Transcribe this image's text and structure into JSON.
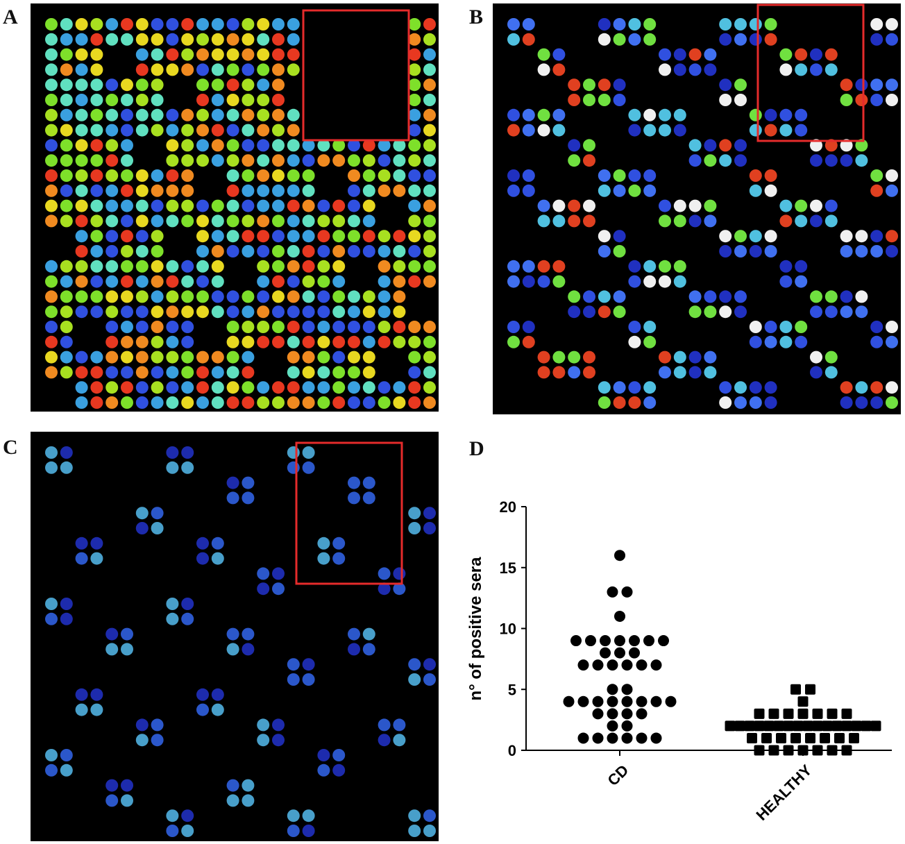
{
  "panels": {
    "a": "A",
    "b": "B",
    "c": "C",
    "d": "D"
  },
  "colors": {
    "highlight_box": "#e52b2b",
    "background": "#000000",
    "marker": "#000000"
  },
  "chart_data": {
    "type": "scatter",
    "ylabel": "n° of positive sera",
    "ylim": [
      0,
      20
    ],
    "yticks": [
      0,
      5,
      10,
      15,
      20
    ],
    "categories": [
      "CD",
      "HEALTHY"
    ],
    "series": [
      {
        "category": "CD",
        "marker": "circle",
        "values": [
          16,
          13,
          13,
          11,
          9,
          9,
          9,
          9,
          9,
          9,
          9,
          8,
          8,
          8,
          7,
          7,
          7,
          7,
          7,
          7,
          5,
          5,
          4,
          4,
          4,
          4,
          4,
          4,
          4,
          4,
          3,
          3,
          3,
          3,
          2,
          2,
          1,
          1,
          1,
          1,
          1,
          1
        ]
      },
      {
        "category": "HEALTHY",
        "marker": "square",
        "values": [
          5,
          5,
          4,
          3,
          3,
          3,
          3,
          3,
          3,
          3,
          2,
          2,
          2,
          2,
          2,
          2,
          2,
          2,
          2,
          2,
          2,
          2,
          2,
          2,
          2,
          2,
          1,
          1,
          1,
          1,
          1,
          1,
          1,
          1,
          0,
          0,
          0,
          0,
          0,
          0,
          0
        ]
      }
    ]
  }
}
